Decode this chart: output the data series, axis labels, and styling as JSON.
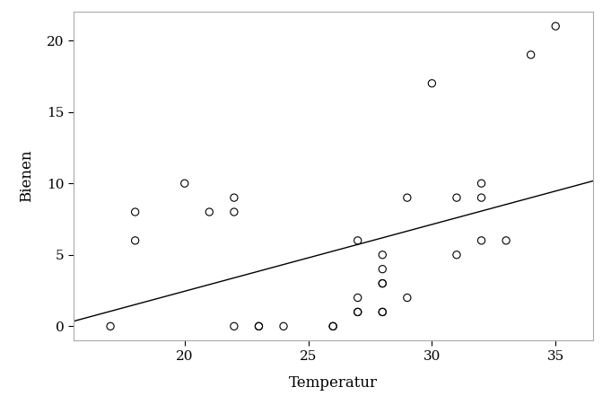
{
  "x": [
    17,
    18,
    18,
    20,
    21,
    22,
    22,
    22,
    23,
    23,
    24,
    26,
    26,
    27,
    27,
    27,
    27,
    28,
    28,
    28,
    28,
    28,
    28,
    29,
    29,
    30,
    31,
    31,
    32,
    32,
    32,
    33,
    34,
    35
  ],
  "y": [
    0,
    8,
    6,
    10,
    8,
    9,
    8,
    0,
    0,
    0,
    0,
    0,
    0,
    6,
    2,
    1,
    1,
    1,
    3,
    5,
    4,
    3,
    1,
    9,
    2,
    17,
    9,
    5,
    10,
    9,
    6,
    6,
    19,
    21
  ],
  "xlabel": "Temperatur",
  "ylabel": "Bienen",
  "xlim": [
    15.5,
    36.5
  ],
  "ylim": [
    -1.0,
    22
  ],
  "xticks": [
    20,
    25,
    30,
    35
  ],
  "yticks": [
    0,
    5,
    10,
    15,
    20
  ],
  "regression_color": "#000000",
  "point_color": "#000000",
  "background_color": "#ffffff",
  "plot_bg_color": "#ffffff",
  "spine_color": "#aaaaaa"
}
